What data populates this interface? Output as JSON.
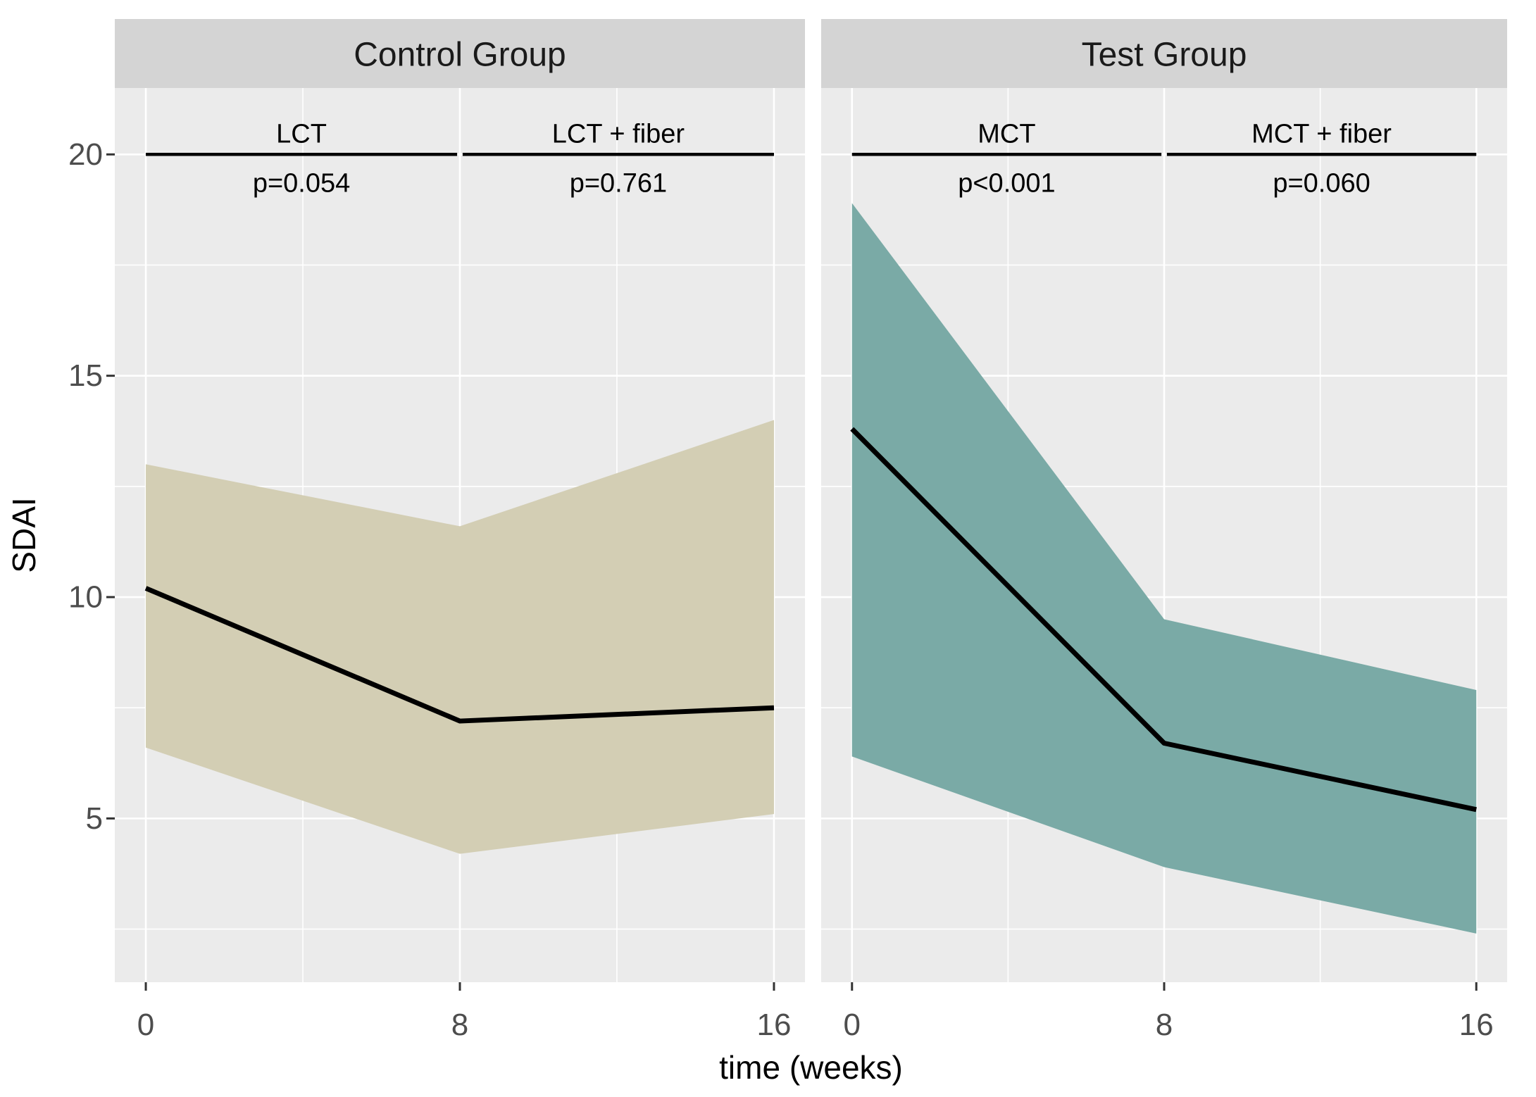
{
  "chart_data": {
    "type": "line",
    "title": "",
    "xlabel": "time (weeks)",
    "ylabel": "SDAI",
    "x_ticks": [
      0,
      8,
      16
    ],
    "x_minor_ticks": [
      4,
      12
    ],
    "y_ticks": [
      20,
      15,
      10,
      5
    ],
    "y_minor_ticks": [
      17.5,
      12.5,
      7.5,
      2.5
    ],
    "xlim": [
      -0.79,
      16.79
    ],
    "ylim": [
      1.3,
      21.5
    ],
    "grid": "white major and minor gridlines on gray panel",
    "legend": "none",
    "line_color": "#000000",
    "colors": {
      "panel_bg": "#ebebeb",
      "strip_bg": "#d4d4d4",
      "grid": "#ffffff",
      "tick_text": "#4d4d4d",
      "tick_mark": "#333333",
      "axis_text": "#000000",
      "strip_text": "#1a1a1a",
      "control_ribbon": "#d3ceb4",
      "test_ribbon": "#7aaaa6"
    },
    "facets": [
      {
        "label": "Control Group",
        "ribbon_color": "#d3ceb4",
        "x": [
          0,
          8,
          16
        ],
        "mean": [
          10.2,
          7.2,
          7.5
        ],
        "ci_upper": [
          13.0,
          11.6,
          14.0
        ],
        "ci_lower": [
          6.6,
          4.2,
          5.1
        ],
        "comparisons": [
          {
            "label": "LCT",
            "p_text": "p=0.054",
            "x_start": 0,
            "x_end": 7.93,
            "y": 20
          },
          {
            "label": "LCT + fiber",
            "p_text": "p=0.761",
            "x_start": 8.07,
            "x_end": 16,
            "y": 20
          }
        ]
      },
      {
        "label": "Test Group",
        "ribbon_color": "#7aaaa6",
        "x": [
          0,
          8,
          16
        ],
        "mean": [
          13.8,
          6.7,
          5.2
        ],
        "ci_upper": [
          18.9,
          9.5,
          7.9
        ],
        "ci_lower": [
          6.4,
          3.9,
          2.4
        ],
        "comparisons": [
          {
            "label": "MCT",
            "p_text": "p<0.001",
            "x_start": 0,
            "x_end": 7.93,
            "y": 20
          },
          {
            "label": "MCT + fiber",
            "p_text": "p=0.060",
            "x_start": 8.07,
            "x_end": 16,
            "y": 20
          }
        ]
      }
    ]
  }
}
